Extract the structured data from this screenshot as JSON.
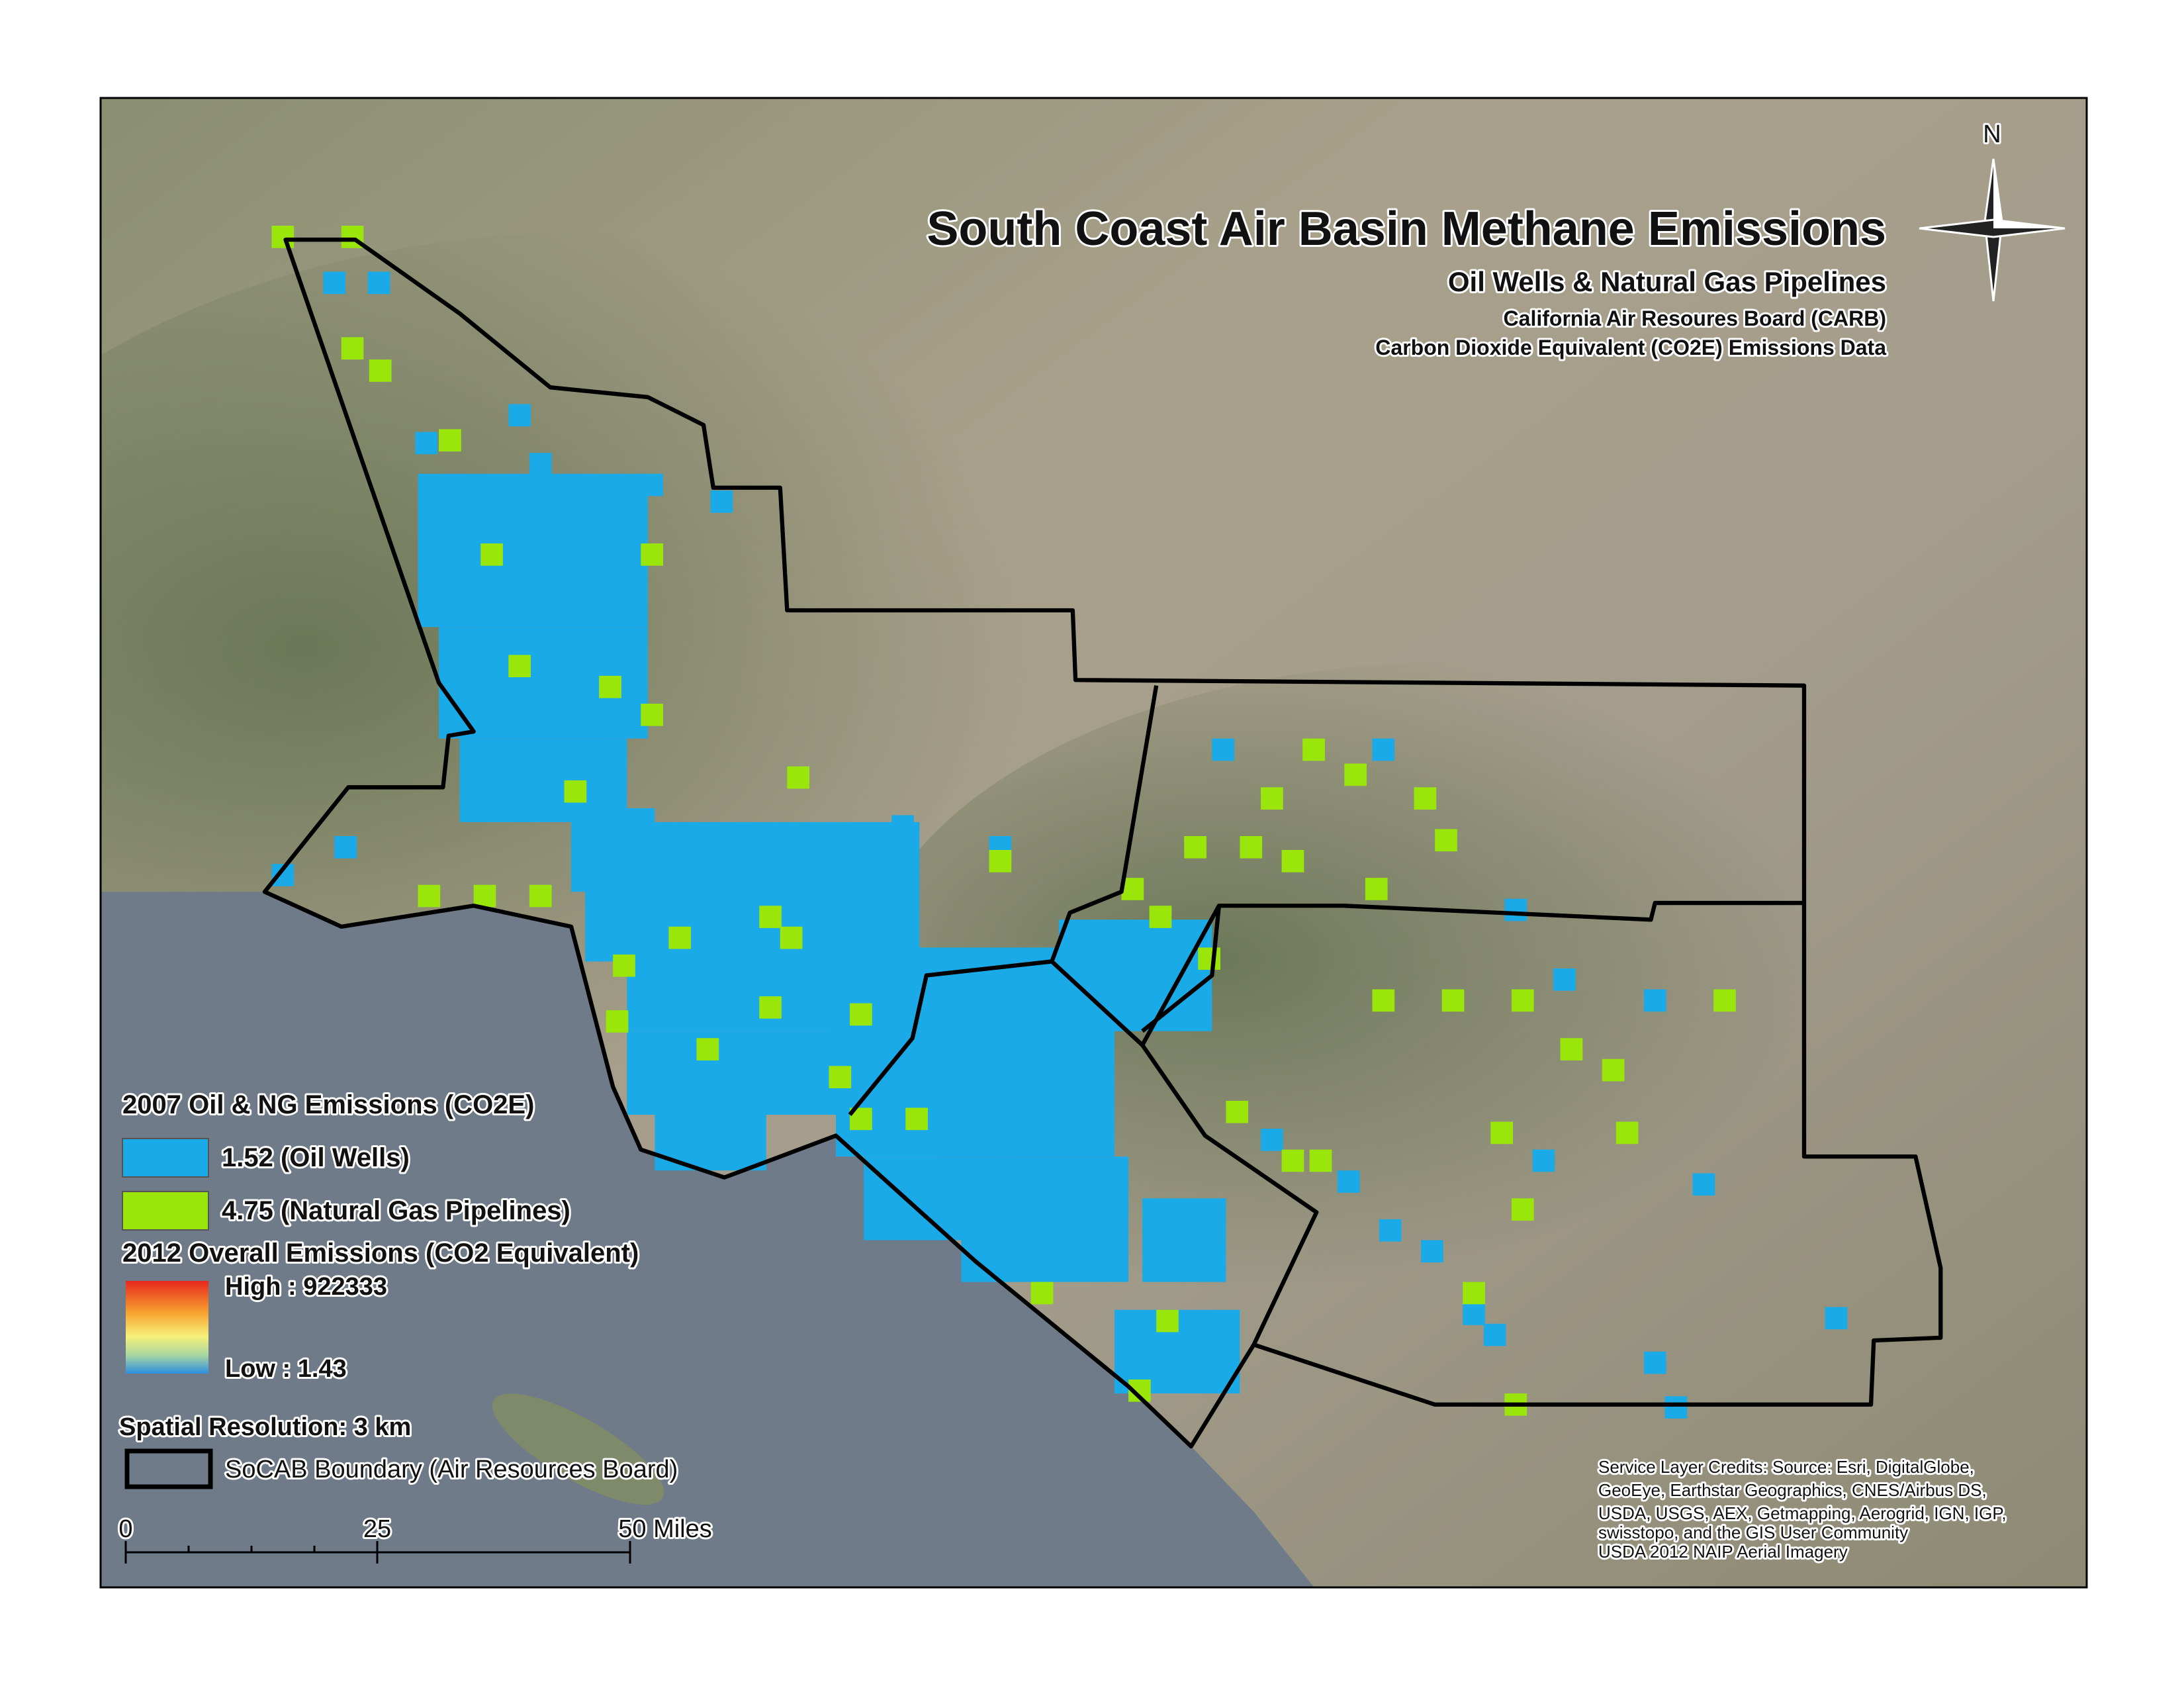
{
  "header": {
    "title": "South Coast Air Basin Methane Emissions",
    "subtitle": "Oil Wells & Natural Gas Pipelines",
    "source_lines": [
      "California Air Resoures Board (CARB)",
      "Carbon Dioxide Equivalent (CO2E) Emissions Data"
    ]
  },
  "north_label": "N",
  "legend": {
    "emissions_title": "2007 Oil & NG Emissions (CO2E)",
    "items": [
      {
        "label": "1.52 (Oil Wells)",
        "color": "#1aaae8"
      },
      {
        "label": "4.75 (Natural Gas Pipelines)",
        "color": "#9be60a"
      }
    ],
    "overall_title": "2012 Overall Emissions (CO2 Equivalent)",
    "high_label": "High : 922333",
    "low_label": "Low : 1.43",
    "resolution": "Spatial Resolution: 3 km",
    "boundary_label": "SoCAB Boundary (Air Resources Board)"
  },
  "scale_bar": {
    "labels": [
      "0",
      "25",
      "50 Miles"
    ]
  },
  "credits": [
    "Service Layer Credits: Source: Esri, DigitalGlobe,",
    "GeoEye, Earthstar Geographics, CNES/Airbus DS,",
    "USDA, USGS, AEX, Getmapping, Aerogrid, IGN, IGP,",
    "swisstopo, and the GIS User Community",
    "USDA 2012 NAIP Aerial Imagery"
  ]
}
